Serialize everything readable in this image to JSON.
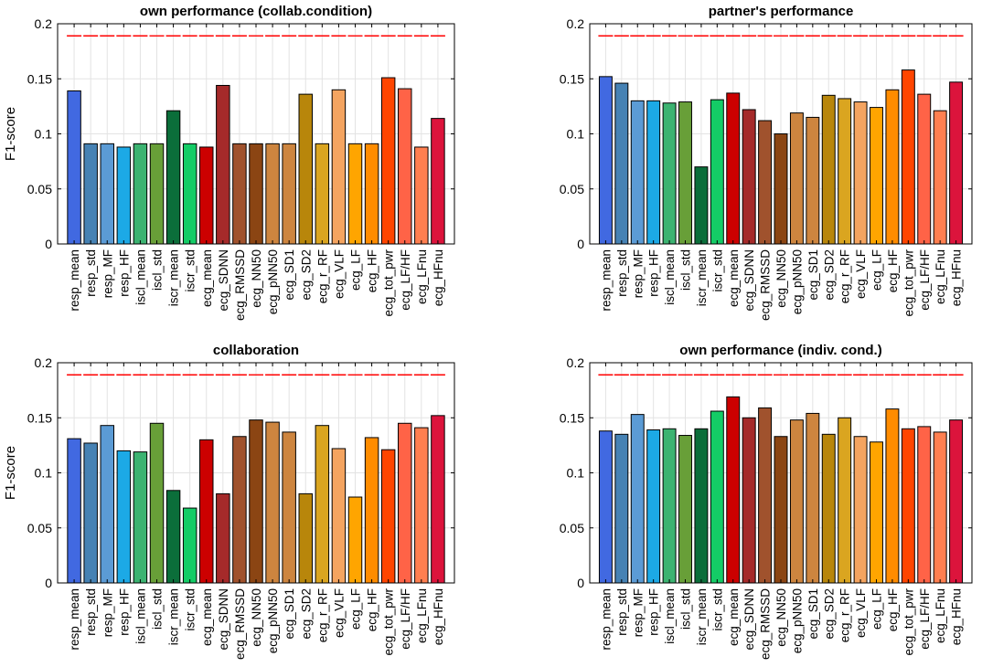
{
  "chart_data": [
    {
      "type": "bar",
      "title": "own performance (collab.condition)",
      "ylabel": "F1-score",
      "ylim": [
        0,
        0.2
      ],
      "yticks": [
        0,
        0.05,
        0.1,
        0.15,
        0.2
      ],
      "ytick_labels": [
        "0",
        "0.05",
        "0.1",
        "0.15",
        "0.2"
      ],
      "grid": true,
      "baseline": 0.189,
      "categories": [
        "resp_mean",
        "resp_std",
        "resp_MF",
        "resp_HF",
        "iscl_mean",
        "iscl_std",
        "iscr_mean",
        "iscr_std",
        "ecg_mean",
        "ecg_SDNN",
        "ecg_RMSSD",
        "ecg_NN50",
        "ecg_pNN50",
        "ecg_SD1",
        "ecg_SD2",
        "ecg_r_RF",
        "ecg_VLF",
        "ecg_LF",
        "ecg_HF",
        "ecg_tot_pwr",
        "ecg_LF/HF",
        "ecg_LFnu",
        "ecg_HFnu"
      ],
      "values": [
        0.139,
        0.091,
        0.091,
        0.088,
        0.091,
        0.091,
        0.121,
        0.091,
        0.088,
        0.144,
        0.091,
        0.091,
        0.091,
        0.091,
        0.136,
        0.091,
        0.14,
        0.091,
        0.091,
        0.151,
        0.141,
        0.088,
        0.114
      ]
    },
    {
      "type": "bar",
      "title": "partner's performance",
      "ylabel": "",
      "ylim": [
        0,
        0.2
      ],
      "yticks": [
        0,
        0.05,
        0.1,
        0.15,
        0.2
      ],
      "ytick_labels": [
        "0",
        "0.05",
        "0.1",
        "0.15",
        "0.2"
      ],
      "grid": true,
      "baseline": 0.189,
      "categories": [
        "resp_mean",
        "resp_std",
        "resp_MF",
        "resp_HF",
        "iscl_mean",
        "iscl_std",
        "iscr_mean",
        "iscr_std",
        "ecg_mean",
        "ecg_SDNN",
        "ecg_RMSSD",
        "ecg_NN50",
        "ecg_pNN50",
        "ecg_SD1",
        "ecg_SD2",
        "ecg_r_RF",
        "ecg_VLF",
        "ecg_LF",
        "ecg_HF",
        "ecg_tot_pwr",
        "ecg_LF/HF",
        "ecg_LFnu",
        "ecg_HFnu"
      ],
      "values": [
        0.152,
        0.146,
        0.13,
        0.13,
        0.128,
        0.129,
        0.07,
        0.131,
        0.137,
        0.122,
        0.112,
        0.1,
        0.119,
        0.115,
        0.135,
        0.132,
        0.129,
        0.124,
        0.14,
        0.158,
        0.136,
        0.121,
        0.147
      ]
    },
    {
      "type": "bar",
      "title": "collaboration",
      "ylabel": "F1-score",
      "ylim": [
        0,
        0.2
      ],
      "yticks": [
        0,
        0.05,
        0.1,
        0.15,
        0.2
      ],
      "ytick_labels": [
        "0",
        "0.05",
        "0.1",
        "0.15",
        "0.2"
      ],
      "grid": true,
      "baseline": 0.189,
      "categories": [
        "resp_mean",
        "resp_std",
        "resp_MF",
        "resp_HF",
        "iscl_mean",
        "iscl_std",
        "iscr_mean",
        "iscr_std",
        "ecg_mean",
        "ecg_SDNN",
        "ecg_RMSSD",
        "ecg_NN50",
        "ecg_pNN50",
        "ecg_SD1",
        "ecg_SD2",
        "ecg_r_RF",
        "ecg_VLF",
        "ecg_LF",
        "ecg_HF",
        "ecg_tot_pwr",
        "ecg_LF/HF",
        "ecg_LFnu",
        "ecg_HFnu"
      ],
      "values": [
        0.131,
        0.127,
        0.143,
        0.12,
        0.119,
        0.145,
        0.084,
        0.068,
        0.13,
        0.081,
        0.133,
        0.148,
        0.146,
        0.137,
        0.081,
        0.143,
        0.122,
        0.078,
        0.132,
        0.121,
        0.145,
        0.141,
        0.152
      ]
    },
    {
      "type": "bar",
      "title": "own performance (indiv. cond.)",
      "ylabel": "",
      "ylim": [
        0,
        0.2
      ],
      "yticks": [
        0,
        0.05,
        0.1,
        0.15,
        0.2
      ],
      "ytick_labels": [
        "0",
        "0.05",
        "0.1",
        "0.15",
        "0.2"
      ],
      "grid": true,
      "baseline": 0.189,
      "categories": [
        "resp_mean",
        "resp_std",
        "resp_MF",
        "resp_HF",
        "iscl_mean",
        "iscl_std",
        "iscr_mean",
        "iscr_std",
        "ecg_mean",
        "ecg_SDNN",
        "ecg_RMSSD",
        "ecg_NN50",
        "ecg_pNN50",
        "ecg_SD1",
        "ecg_SD2",
        "ecg_r_RF",
        "ecg_VLF",
        "ecg_LF",
        "ecg_HF",
        "ecg_tot_pwr",
        "ecg_LF/HF",
        "ecg_LFnu",
        "ecg_HFnu"
      ],
      "values": [
        0.138,
        0.135,
        0.153,
        0.139,
        0.14,
        0.134,
        0.14,
        0.156,
        0.169,
        0.15,
        0.159,
        0.133,
        0.148,
        0.154,
        0.135,
        0.15,
        0.133,
        0.128,
        0.158,
        0.14,
        0.142,
        0.137,
        0.148
      ]
    }
  ],
  "colors": {
    "bars": [
      "#4169e1",
      "#4682b4",
      "#5b9bd5",
      "#1ca9e6",
      "#3cb371",
      "#689f38",
      "#0b6e3a",
      "#14cc66",
      "#cc0000",
      "#a52a2a",
      "#a0522d",
      "#8b4513",
      "#cd853f",
      "#cd853f",
      "#b8860b",
      "#daa520",
      "#f4a460",
      "#ffa500",
      "#ff8c00",
      "#ff4500",
      "#ff6347",
      "#ff7f50",
      "#dc143c"
    ],
    "baseline": "#ff0000",
    "grid": "#e3e3e3",
    "bar_edge": "#000000"
  }
}
